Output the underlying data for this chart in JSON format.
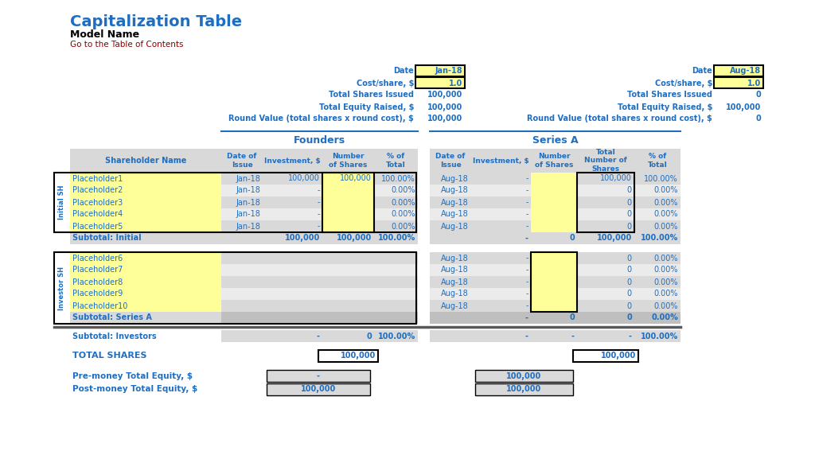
{
  "title": "Capitalization Table",
  "subtitle": "Model Name",
  "link_text": "Go to the Table of Contents",
  "title_color": "#1F6EC0",
  "subtitle_color": "#000000",
  "link_color": "#8B0000",
  "blue": "#1F6EC0",
  "yellow": "#FFFF99",
  "lgray": "#D9D9D9",
  "mgray": "#BFBFBF",
  "dgray": "#595959",
  "white": "#FFFFFF",
  "black": "#000000",
  "founders_label": "Founders",
  "seriesA_label": "Series A",
  "info_left_labels": [
    "Date",
    "Cost/share, $",
    "Total Shares Issued",
    "Total Equity Raised, $",
    "Round Value (total shares x round cost), $"
  ],
  "info_left_values": [
    "Jan-18",
    "1.0",
    "100,000",
    "100,000",
    "100,000"
  ],
  "info_left_yellow": [
    true,
    true,
    false,
    false,
    false
  ],
  "info_right_labels": [
    "Date",
    "Cost/share, $",
    "Total Shares Issued",
    "Total Equity Raised, $",
    "Round Value (total shares x round cost), $"
  ],
  "info_right_values": [
    "Aug-18",
    "1.0",
    "0",
    "100,000",
    "0"
  ],
  "info_right_yellow": [
    true,
    true,
    false,
    false,
    false
  ],
  "sh_header": "Shareholder Name",
  "col_hdrs_founders": [
    "Date of\nIssue",
    "Investment, $",
    "Number\nof Shares",
    "% of\nTotal"
  ],
  "col_hdrs_seriesA": [
    "Date of\nIssue",
    "Investment, $",
    "Number\nof Shares",
    "Total\nNumber of\nShares",
    "% of\nTotal"
  ],
  "initial_sh_label": "Initial SH",
  "investor_sh_label": "Investor SH",
  "initial_names": [
    "Placeholder1",
    "Placeholder2",
    "Placeholder3",
    "Placeholder4",
    "Placeholder5"
  ],
  "investor_names": [
    "Placeholder6",
    "Placeholder7",
    "Placeholder8",
    "Placeholder9",
    "Placeholder10"
  ],
  "init_founders": [
    [
      "Jan-18",
      "100,000",
      "100,000",
      "100.00%"
    ],
    [
      "Jan-18",
      "-",
      "",
      "0.00%"
    ],
    [
      "Jan-18",
      "-",
      "",
      "0.00%"
    ],
    [
      "Jan-18",
      "-",
      "",
      "0.00%"
    ],
    [
      "Jan-18",
      "-",
      "",
      "0.00%"
    ]
  ],
  "init_seriesA": [
    [
      "Aug-18",
      "-",
      "",
      "100,000",
      "100.00%"
    ],
    [
      "Aug-18",
      "-",
      "",
      "0",
      "0.00%"
    ],
    [
      "Aug-18",
      "-",
      "",
      "0",
      "0.00%"
    ],
    [
      "Aug-18",
      "-",
      "",
      "0",
      "0.00%"
    ],
    [
      "Aug-18",
      "-",
      "",
      "0",
      "0.00%"
    ]
  ],
  "inv_seriesA": [
    [
      "Aug-18",
      "-",
      "",
      "0",
      "0.00%"
    ],
    [
      "Aug-18",
      "-",
      "",
      "0",
      "0.00%"
    ],
    [
      "Aug-18",
      "-",
      "",
      "0",
      "0.00%"
    ],
    [
      "Aug-18",
      "-",
      "",
      "0",
      "0.00%"
    ],
    [
      "Aug-18",
      "-",
      "",
      "0",
      "0.00%"
    ]
  ],
  "subtotal_init_f": [
    "",
    "100,000",
    "100,000",
    "100.00%"
  ],
  "subtotal_init_sa": [
    "",
    "-",
    "0",
    "100,000",
    "100.00%"
  ],
  "subtotal_inv_sa": [
    "",
    "-",
    "0",
    "0",
    "0.00%"
  ],
  "subtotal_inv_f": [
    "",
    "-",
    "0",
    "100.00%"
  ],
  "subtotal_inv_sa_row": [
    "",
    "-",
    "-",
    "-",
    "100.00%"
  ],
  "total_shares_f": "100,000",
  "total_shares_sa": "100,000",
  "pre_money_f": "-",
  "post_money_f": "100,000",
  "pre_money_sa": "100,000",
  "post_money_sa": "100,000"
}
